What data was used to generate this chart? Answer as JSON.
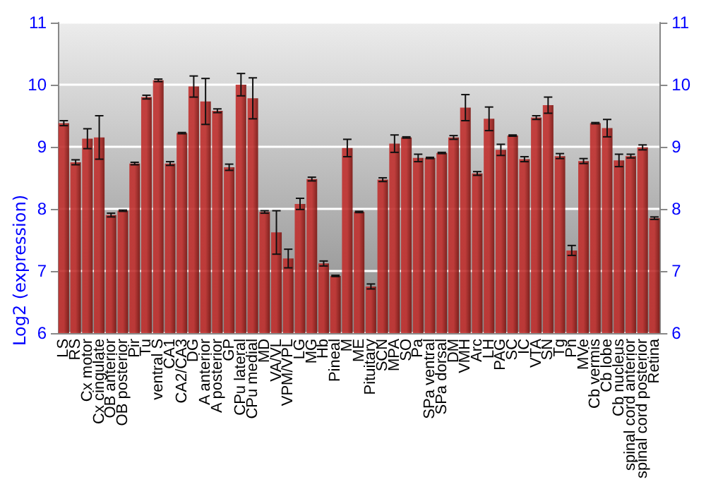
{
  "chart_data": {
    "type": "bar",
    "ylabel": "Log2 (expression)",
    "categories": [
      "LS",
      "RS",
      "Cx motor",
      "Cx cingulate",
      "OB anterior",
      "OB posterior",
      "Pir",
      "Tu",
      "ventral S",
      "CA1",
      "CA2/CA3",
      "DG",
      "A anterior",
      "A posterior",
      "GP",
      "CPu lateral",
      "CPu medial",
      "MD",
      "VA/VL",
      "VPM/VPL",
      "LG",
      "MG",
      "Hb",
      "Pineal",
      "M",
      "ME",
      "Pituitary",
      "SCN",
      "MPA",
      "SO",
      "Pa",
      "SPa ventral",
      "SPa dorsal",
      "DM",
      "VMH",
      "Arc",
      "LH",
      "PAG",
      "SC",
      "IC",
      "VTA",
      "SN",
      "Tg",
      "Pn",
      "MVe",
      "Cb vermis",
      "Cb lobe",
      "Cb nucleus",
      "spinal cord anterior",
      "spinal cord posterior",
      "Retina"
    ],
    "values": [
      9.38,
      8.75,
      9.13,
      9.15,
      7.9,
      7.97,
      8.73,
      9.8,
      10.07,
      8.73,
      9.22,
      9.97,
      9.73,
      9.58,
      8.67,
      10.0,
      9.78,
      7.95,
      7.62,
      7.2,
      8.08,
      8.48,
      7.12,
      6.92,
      8.98,
      7.95,
      6.75,
      8.47,
      9.05,
      9.15,
      8.82,
      8.82,
      8.9,
      9.15,
      9.63,
      8.57,
      9.45,
      8.95,
      9.18,
      8.8,
      9.47,
      9.67,
      8.85,
      7.33,
      8.77,
      9.38,
      9.3,
      8.78,
      8.85,
      8.99,
      7.85
    ],
    "errors": [
      0.04,
      0.04,
      0.16,
      0.35,
      0.03,
      0.01,
      0.02,
      0.03,
      0.02,
      0.03,
      0.01,
      0.17,
      0.37,
      0.03,
      0.05,
      0.18,
      0.33,
      0.02,
      0.35,
      0.15,
      0.09,
      0.03,
      0.04,
      0.01,
      0.14,
      0.01,
      0.04,
      0.03,
      0.14,
      0.01,
      0.06,
      0.01,
      0.01,
      0.03,
      0.21,
      0.03,
      0.19,
      0.09,
      0.01,
      0.04,
      0.03,
      0.13,
      0.04,
      0.08,
      0.04,
      0.01,
      0.14,
      0.1,
      0.03,
      0.04,
      0.02
    ],
    "color": "#c0302e",
    "ylim": [
      6,
      11
    ],
    "yticks": [
      6,
      7,
      8,
      9,
      10,
      11
    ],
    "y2lim": [
      6,
      11
    ],
    "y2ticks": [
      6,
      7,
      8,
      9,
      10,
      11
    ],
    "grid": "y"
  }
}
